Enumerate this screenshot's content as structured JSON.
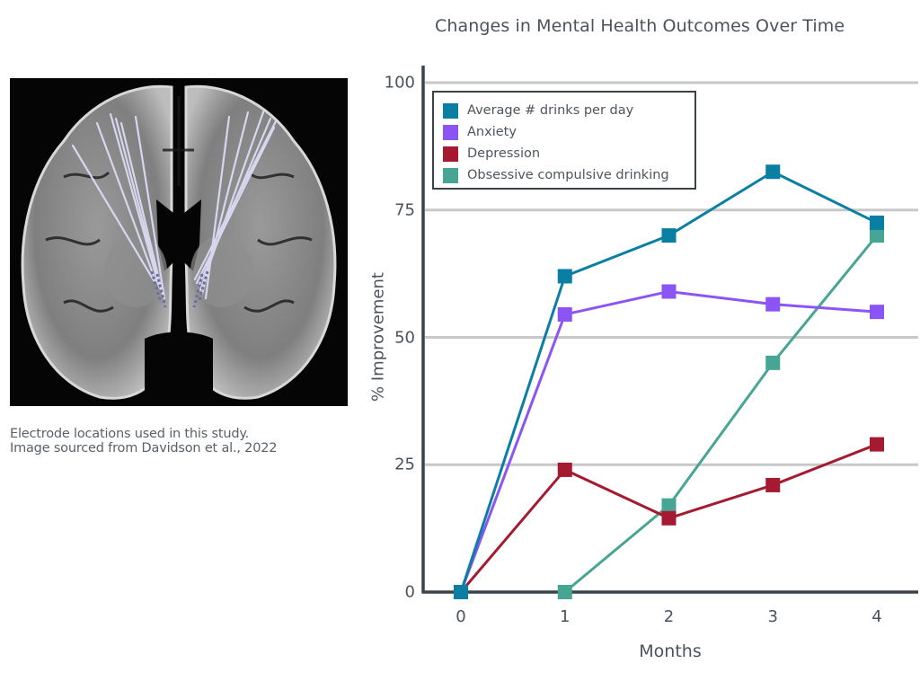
{
  "figure": {
    "image_caption_lines": [
      "Electrode locations used in this study.",
      "Image sourced from Davidson et al., 2022"
    ],
    "image_description": "Coronal brain MRI slice with bilateral electrode trajectories"
  },
  "chart_data": {
    "type": "line",
    "title": "Changes in Mental Health Outcomes Over Time",
    "xlabel": "Months",
    "ylabel": "% Improvement",
    "x": [
      0,
      1,
      2,
      3,
      4
    ],
    "x_tick_labels": [
      "0",
      "1",
      "2",
      "3",
      "4"
    ],
    "y_tick_labels": [
      "0",
      "25",
      "50",
      "75",
      "100"
    ],
    "y_ticks": [
      0,
      25,
      50,
      75,
      100
    ],
    "ylim": [
      0,
      100
    ],
    "xlim": [
      0,
      4
    ],
    "grid": "horizontal",
    "legend_position": "upper-left (boxed)",
    "marker": "square",
    "series": [
      {
        "name": "Average # drinks per day",
        "color": "#0b7fa3",
        "values": [
          0,
          62,
          70,
          82.5,
          72.5
        ]
      },
      {
        "name": "Anxiety",
        "color": "#8b55f5",
        "values": [
          0,
          54.5,
          59,
          56.5,
          55
        ]
      },
      {
        "name": "Depression",
        "color": "#a51a30",
        "values": [
          0,
          24,
          14.5,
          21,
          29
        ]
      },
      {
        "name": "Obsessive compulsive drinking",
        "color": "#46a693",
        "values": [
          0,
          0,
          17,
          45,
          70
        ]
      }
    ]
  },
  "colors": {
    "axis": "#3a434a",
    "grid": "#c8c8c8",
    "text": "#4a535b"
  }
}
